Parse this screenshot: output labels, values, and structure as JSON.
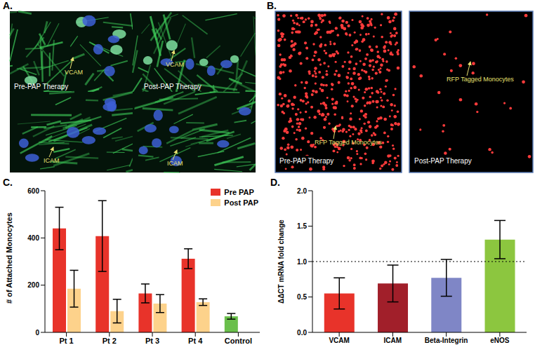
{
  "chart_data": [
    {
      "type": "bar",
      "title": "C.",
      "categories": [
        "Pt 1",
        "Pt 2",
        "Pt 3",
        "Pt 4",
        "Control"
      ],
      "y_label": "# of Attached Monocytes",
      "series": [
        {
          "name": "Pre PAP",
          "color": "#e8332a",
          "colors": [
            "#e8332a",
            "#e8332a",
            "#e8332a",
            "#e8332a",
            "#6abf4b"
          ],
          "values": [
            440,
            408,
            165,
            312,
            68
          ],
          "errors": [
            90,
            150,
            40,
            42,
            12
          ]
        },
        {
          "name": "Post PAP",
          "color": "#fdd28b",
          "values": [
            185,
            90,
            122,
            128,
            null
          ],
          "errors": [
            78,
            50,
            38,
            14,
            null
          ]
        }
      ],
      "ylim": [
        0,
        600
      ],
      "yticks": [
        0,
        200,
        400,
        600
      ],
      "legend": "top-right",
      "grid": false
    },
    {
      "type": "bar",
      "title": "D.",
      "categories": [
        "VCAM",
        "ICAM",
        "Beta-Integrin",
        "eNOS"
      ],
      "y_label": "ΔΔCT mRNA fold change",
      "values": [
        0.55,
        0.69,
        0.77,
        1.31
      ],
      "errors": [
        0.22,
        0.26,
        0.26,
        0.27
      ],
      "colors": [
        "#e8332a",
        "#a11f2a",
        "#7f86c6",
        "#8cc63f"
      ],
      "ylim": [
        0,
        2
      ],
      "yticks": [
        {
          "value": 0,
          "label": "0.0"
        },
        {
          "value": 0.5,
          "label": "0.5"
        },
        {
          "value": 1,
          "label": "1.0"
        },
        {
          "value": 1.5,
          "label": "1.5"
        },
        {
          "value": 2,
          "label": "2.0"
        }
      ],
      "reference_line": 1,
      "grid": false
    }
  ],
  "images": [
    {
      "title": "A.",
      "panels": [
        {
          "caption": "Pre-PAP Therapy",
          "label": "VCAM"
        },
        {
          "caption": "Post-PAP Therapy",
          "label": "VCAM"
        },
        {
          "label": "ICAM"
        },
        {
          "label": "ICAM"
        }
      ]
    },
    {
      "title": "B.",
      "panels": [
        {
          "caption": "Pre-PAP Therapy",
          "label": "RFP Tagged Monocytes"
        },
        {
          "caption": "Post-PAP Therapy",
          "label": "RFP Tagged Monocytes"
        }
      ]
    }
  ]
}
